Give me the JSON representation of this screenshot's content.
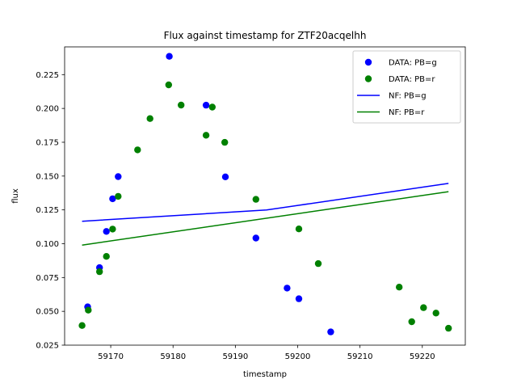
{
  "chart_data": {
    "type": "scatter",
    "title": "Flux against timestamp for ZTF20acqelhh",
    "xlabel": "timestamp",
    "ylabel": "flux",
    "xlim": [
      59162.6,
      59226.9
    ],
    "ylim": [
      0.025,
      0.2455
    ],
    "xticks": [
      59170,
      59180,
      59190,
      59200,
      59210,
      59220
    ],
    "yticks": [
      0.025,
      0.05,
      0.075,
      0.1,
      0.125,
      0.15,
      0.175,
      0.2,
      0.225
    ],
    "ytick_labels": [
      "0.025",
      "0.050",
      "0.075",
      "0.100",
      "0.125",
      "0.150",
      "0.175",
      "0.200",
      "0.225"
    ],
    "grid": false,
    "legend_position": "top-right",
    "series": [
      {
        "name": "DATA: PB=g",
        "kind": "scatter",
        "color": "#0000ff",
        "points": [
          [
            59166.3,
            0.0533
          ],
          [
            59168.2,
            0.0823
          ],
          [
            59169.3,
            0.1091
          ],
          [
            59170.3,
            0.1332
          ],
          [
            59171.2,
            0.1496
          ],
          [
            59179.4,
            0.2385
          ],
          [
            59185.3,
            0.2024
          ],
          [
            59188.4,
            0.1494
          ],
          [
            59193.3,
            0.1042
          ],
          [
            59198.3,
            0.0672
          ],
          [
            59200.2,
            0.0593
          ],
          [
            59205.3,
            0.0348
          ]
        ]
      },
      {
        "name": "DATA: PB=r",
        "kind": "scatter",
        "color": "#008000",
        "points": [
          [
            59165.4,
            0.0395
          ],
          [
            59166.4,
            0.0509
          ],
          [
            59168.2,
            0.0793
          ],
          [
            59169.3,
            0.0906
          ],
          [
            59170.3,
            0.1108
          ],
          [
            59171.2,
            0.135
          ],
          [
            59174.3,
            0.1694
          ],
          [
            59176.3,
            0.1925
          ],
          [
            59179.3,
            0.2174
          ],
          [
            59181.3,
            0.2025
          ],
          [
            59185.3,
            0.1802
          ],
          [
            59186.3,
            0.201
          ],
          [
            59188.3,
            0.1749
          ],
          [
            59193.3,
            0.1328
          ],
          [
            59200.2,
            0.1109
          ],
          [
            59203.3,
            0.0853
          ],
          [
            59216.3,
            0.0679
          ],
          [
            59218.3,
            0.0423
          ],
          [
            59220.2,
            0.0527
          ],
          [
            59222.2,
            0.0487
          ],
          [
            59224.2,
            0.0375
          ]
        ]
      },
      {
        "name": "NF: PB=g",
        "kind": "line",
        "color": "#0000ff",
        "points": [
          [
            59165.4,
            0.1166
          ],
          [
            59195.0,
            0.1249
          ],
          [
            59224.2,
            0.1446
          ]
        ]
      },
      {
        "name": "NF: PB=r",
        "kind": "line",
        "color": "#008000",
        "points": [
          [
            59165.4,
            0.099
          ],
          [
            59224.2,
            0.1385
          ]
        ]
      }
    ]
  }
}
